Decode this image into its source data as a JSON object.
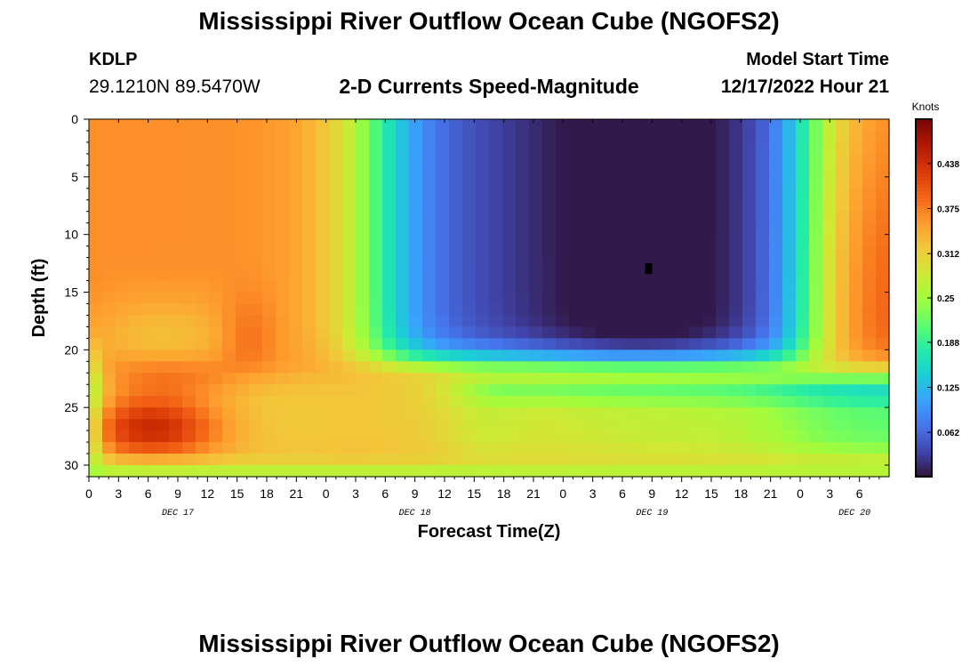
{
  "header": {
    "title": "Mississippi River Outflow Ocean Cube (NGOFS2)",
    "station_id": "KDLP",
    "station_coords": "29.1210N  89.5470W",
    "subtitle": "2-D Currents Speed-Magnitude",
    "model_start_label": "Model Start Time",
    "model_start_time": "12/17/2022 Hour 21"
  },
  "footer": {
    "title": "Mississippi River Outflow Ocean Cube (NGOFS2)"
  },
  "colors": {
    "colormap": [
      "#30123b",
      "#4145ab",
      "#4675ed",
      "#39a2fc",
      "#1bcfd4",
      "#24eca6",
      "#61fc6c",
      "#a4fc3b",
      "#d1e834",
      "#f3c63a",
      "#fe9b2d",
      "#f36315",
      "#d93806",
      "#b11901",
      "#7a0402"
    ],
    "marker": "#000000"
  },
  "chart_data": {
    "type": "heatmap",
    "title": "2-D Currents Speed-Magnitude",
    "xlabel": "Forecast Time(Z)",
    "ylabel": "Depth (ft)",
    "x_range_hours": [
      0,
      81
    ],
    "y_range_ft": [
      0,
      31
    ],
    "y_inverted": true,
    "x_tick_labels": [
      "0",
      "3",
      "6",
      "9",
      "12",
      "15",
      "18",
      "21",
      "0",
      "3",
      "6",
      "9",
      "12",
      "15",
      "18",
      "21",
      "0",
      "3",
      "6",
      "9",
      "12",
      "15",
      "18",
      "21",
      "0",
      "3",
      "6"
    ],
    "date_labels": [
      "DEC 17",
      "DEC 18",
      "DEC 19",
      "DEC 20"
    ],
    "y_ticks": [
      0,
      5,
      10,
      15,
      20,
      25,
      30
    ],
    "colorbar": {
      "title": "Knots",
      "range": [
        0,
        0.5
      ],
      "ticks": [
        0.062,
        0.125,
        0.188,
        0.25,
        0.312,
        0.375,
        0.438
      ]
    },
    "grid": false,
    "approx_values_knots": {
      "surface_to_18ft_hours_0_to_30": 0.36,
      "bottom_23_to_29ft_hours_2_to_14": 0.45,
      "minimum_near_hour_56_depth_13ft": 0.0,
      "mid_depth_hours_42_to_70": 0.05,
      "bottom_layer_hours_40_to_70": 0.27,
      "surface_hours_78_to_81": 0.33
    }
  }
}
